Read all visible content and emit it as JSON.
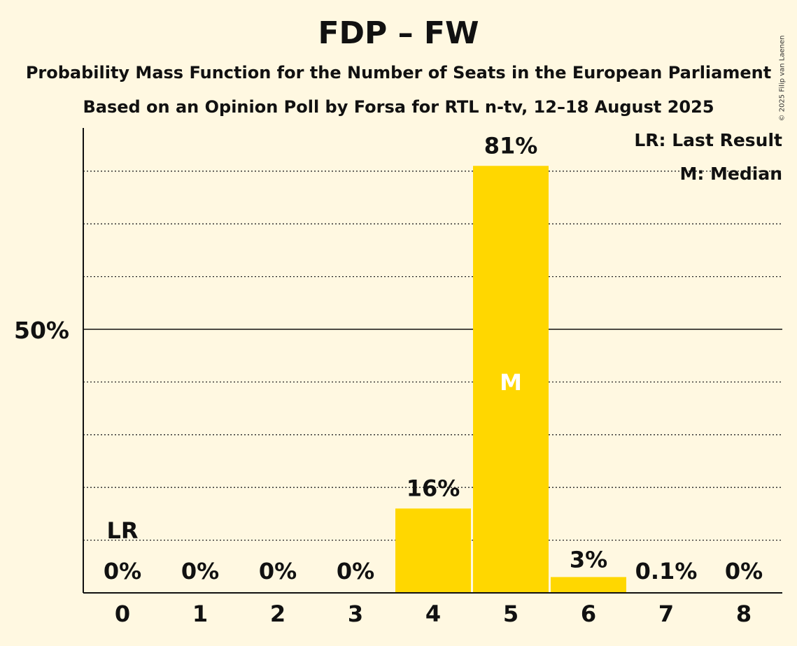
{
  "chart_data": {
    "type": "bar",
    "title": "FDP – FW",
    "subtitle": "Probability Mass Function for the Number of Seats in the European Parliament",
    "subtitle2": "Based on an Opinion Poll by Forsa for RTL n-tv, 12–18 August 2025",
    "categories": [
      "0",
      "1",
      "2",
      "3",
      "4",
      "5",
      "6",
      "7",
      "8"
    ],
    "values": [
      0,
      0,
      0,
      0,
      16,
      81,
      3,
      0.1,
      0
    ],
    "value_labels": [
      "0%",
      "0%",
      "0%",
      "0%",
      "16%",
      "81%",
      "3%",
      "0.1%",
      "0%"
    ],
    "ylim": [
      0,
      88
    ],
    "y_ticks": [
      {
        "value": 50,
        "label": "50%"
      }
    ],
    "gridlines": [
      10,
      20,
      30,
      40,
      60,
      70,
      80
    ],
    "last_result_index": 0,
    "last_result_mark": "LR",
    "median_index": 5,
    "median_mark": "M",
    "legend": [
      "LR: Last Result",
      "M: Median"
    ],
    "legend_position": "top-right",
    "bar_color": "#FFD700"
  },
  "copyright": "© 2025 Filip van Laenen"
}
